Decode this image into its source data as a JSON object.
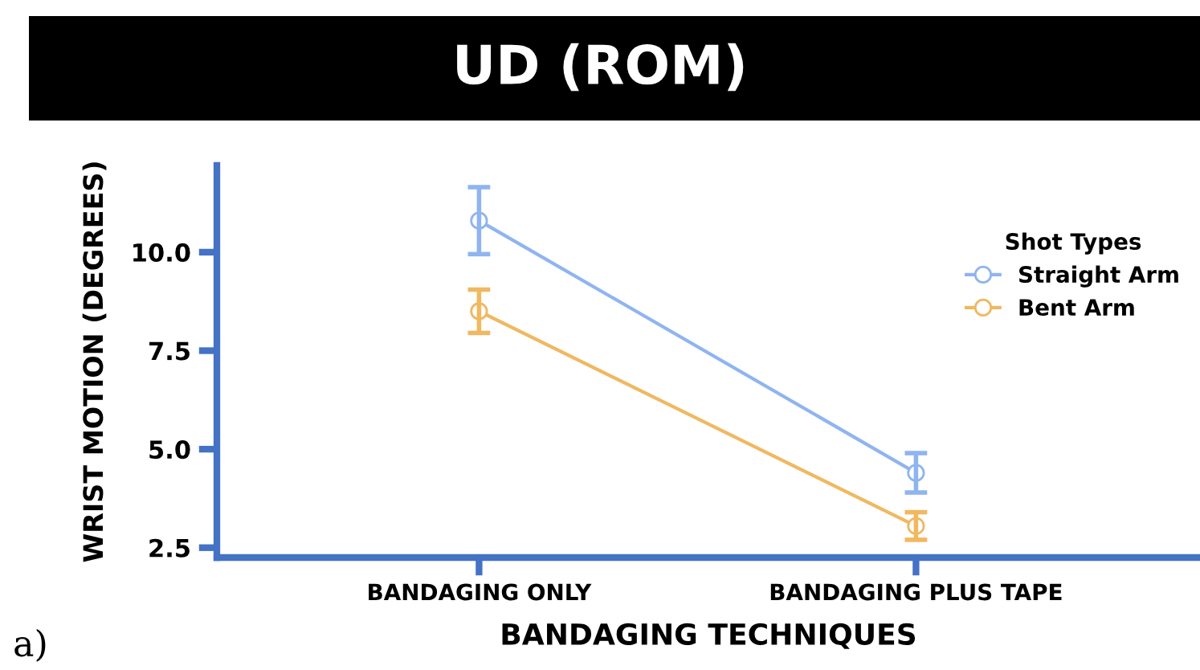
{
  "chart_data": {
    "type": "line",
    "title": "UD (ROM)",
    "xlabel": "BANDAGING TECHNIQUES",
    "ylabel": "WRIST MOTION (DEGREES)",
    "legend_title": "Shot Types",
    "categories": [
      "BANDAGING ONLY",
      "BANDAGING PLUS TAPE"
    ],
    "series": [
      {
        "name": "Straight Arm",
        "color": "#8fb4f0",
        "values": [
          10.8,
          4.4
        ],
        "errors": [
          0.85,
          0.5
        ]
      },
      {
        "name": "Bent Arm",
        "color": "#f0b860",
        "values": [
          8.5,
          3.05
        ],
        "errors": [
          0.55,
          0.35
        ]
      }
    ],
    "ylim": [
      2.25,
      12.2
    ],
    "yticks": [
      {
        "value": 2.5,
        "label": "2.5"
      },
      {
        "value": 5,
        "label": "5.0"
      },
      {
        "value": 7.5,
        "label": "7.5"
      },
      {
        "value": 10,
        "label": "10.0"
      }
    ],
    "marker": "circle",
    "line_style": "solid",
    "grid": false,
    "legend": "top right",
    "annotations": [
      "a)"
    ]
  }
}
